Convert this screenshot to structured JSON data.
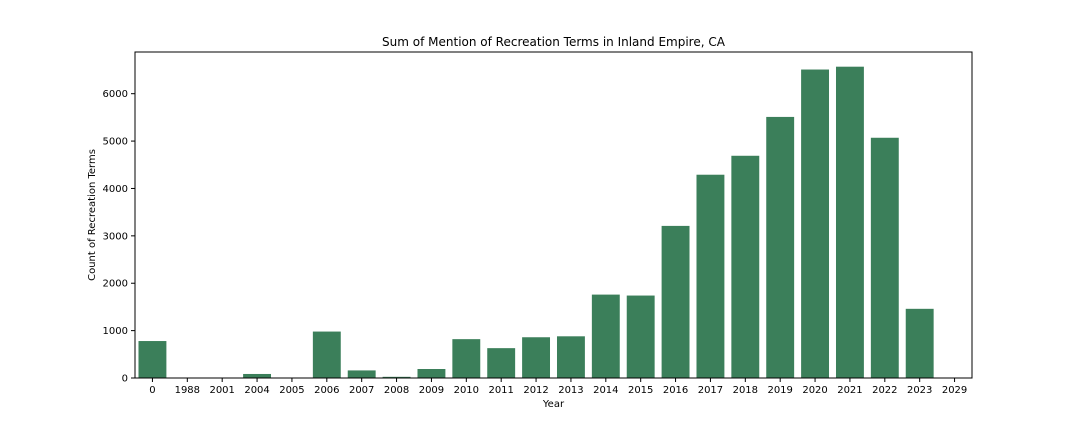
{
  "chart_data": {
    "type": "bar",
    "title": "Sum of Mention of Recreation Terms in Inland Empire, CA",
    "xlabel": "Year",
    "ylabel": "Count of Recreation Terms",
    "categories": [
      "0",
      "1988",
      "2001",
      "2004",
      "2005",
      "2006",
      "2007",
      "2008",
      "2009",
      "2010",
      "2011",
      "2012",
      "2013",
      "2014",
      "2015",
      "2016",
      "2017",
      "2018",
      "2019",
      "2020",
      "2021",
      "2022",
      "2023",
      "2029"
    ],
    "values": [
      780,
      5,
      5,
      85,
      5,
      980,
      160,
      25,
      190,
      820,
      630,
      860,
      880,
      1760,
      1740,
      3210,
      4290,
      4690,
      5510,
      6510,
      6570,
      5070,
      1460,
      0
    ],
    "yticks": [
      0,
      1000,
      2000,
      3000,
      4000,
      5000,
      6000
    ],
    "ylim": [
      0,
      6880
    ],
    "grid": false,
    "legend": "none",
    "bar_color": "#3b7f5a"
  }
}
